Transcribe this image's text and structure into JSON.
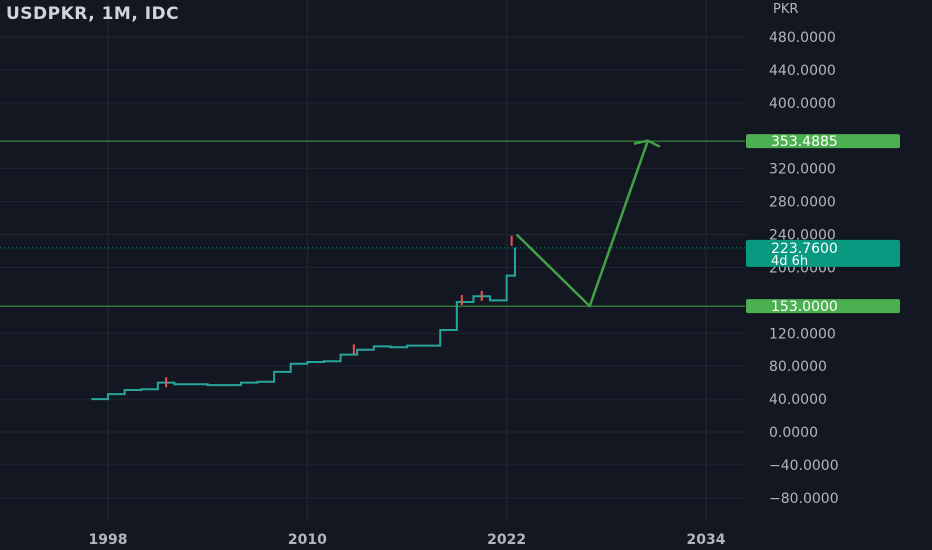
{
  "header": {
    "symbol_title": "USDPKR, 1M, IDC",
    "price_unit": "PKR"
  },
  "colors": {
    "background": "#131722",
    "grid": "#232733",
    "axis_text": "#b2b5be",
    "candle_up": "#26a69a",
    "candle_down": "#ef5350",
    "drawing_line": "#43a047",
    "badge_green": "#4caf50",
    "badge_teal": "#089981",
    "badge_text": "#ffffff"
  },
  "chart_data": {
    "type": "line",
    "title": "USDPKR, 1M, IDC",
    "xlabel": "",
    "ylabel": "PKR",
    "xlim": [
      1998,
      2034
    ],
    "ylim": [
      -80,
      480
    ],
    "x_ticks": [
      "1998",
      "2010",
      "2022",
      "2034"
    ],
    "y_ticks": [
      "480.0000",
      "440.0000",
      "400.0000",
      "320.0000",
      "280.0000",
      "240.0000",
      "200.0000",
      "120.0000",
      "80.0000",
      "40.0000",
      "0.0000",
      "−40.0000",
      "−80.0000"
    ],
    "grid": true,
    "series": [
      {
        "x": [
          1997.0,
          1998.0,
          1999.0,
          2000.0,
          2001.0,
          2002.0,
          2004.0,
          2006.0,
          2007.0,
          2008.0,
          2009.0,
          2010.0,
          2011.0,
          2012.0,
          2013.0,
          2014.0,
          2015.0,
          2016.0,
          2017.0,
          2018.0,
          2019.0,
          2020.0,
          2021.0,
          2022.0,
          2022.5
        ],
        "values": [
          40,
          46,
          51,
          52,
          60,
          58,
          57,
          60,
          61,
          73,
          83,
          85,
          86,
          94,
          100,
          104,
          103,
          105,
          105,
          124,
          158,
          165,
          160,
          190,
          224
        ]
      }
    ],
    "projection": {
      "x": [
        2022.6,
        2027.0,
        2030.5
      ],
      "values": [
        240,
        153,
        354
      ]
    },
    "horizontal_levels": [
      {
        "value": 353.4885,
        "label": "353.4885"
      },
      {
        "value": 153.0,
        "label": "153.0000"
      }
    ],
    "last_price": {
      "value": 223.76,
      "label": "223.7600",
      "countdown": "4d 6h"
    }
  }
}
